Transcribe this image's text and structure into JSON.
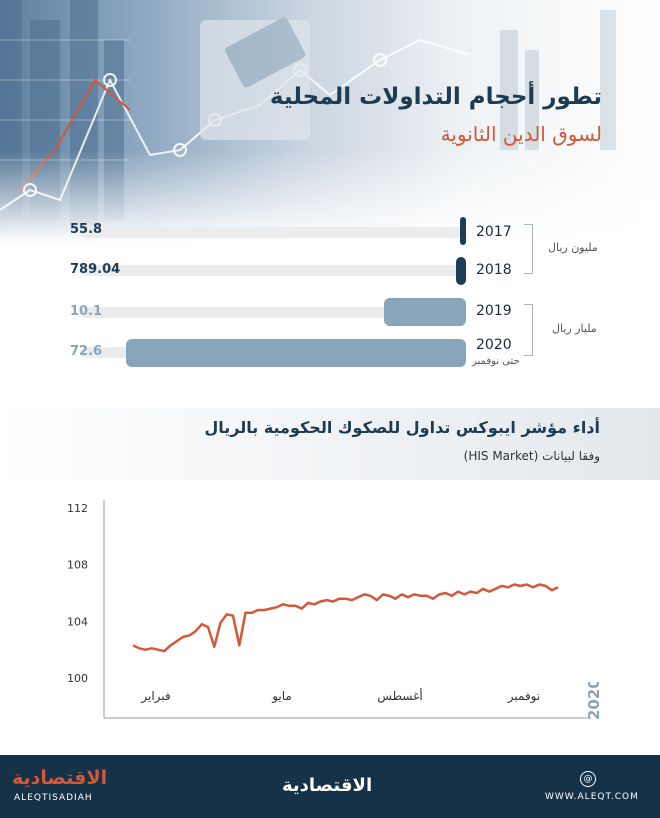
{
  "header": {
    "title": "تطور أحجام التداولات المحلية",
    "subtitle": "لسوق الدين الثانوية"
  },
  "bars_section": {
    "unit_million": "مليون ريال",
    "unit_billion": "مليار ريال",
    "rows": [
      {
        "year": "2017",
        "value": 55.8,
        "value_label": "55.8",
        "note": ""
      },
      {
        "year": "2018",
        "value": 789.04,
        "value_label": "789.04",
        "note": ""
      },
      {
        "year": "2019",
        "value": 10.1,
        "value_label": "10.1",
        "note": ""
      },
      {
        "year": "2020",
        "value": 72.6,
        "value_label": "72.6",
        "note": "حتى نوفمبر"
      }
    ]
  },
  "line_section": {
    "title": "أداء مؤشر ايبوكس تداول للصكوك الحكومية بالريال",
    "source": "وفقا لبيانات (HIS Market)",
    "year_label": "2020"
  },
  "chart_data": {
    "type": "line",
    "x_ticks": [
      "فبراير",
      "مايو",
      "أغسطس",
      "نوفمبر"
    ],
    "ylim": [
      100,
      112
    ],
    "y_ticks": [
      100,
      104,
      108,
      112
    ],
    "values": [
      102.3,
      102.1,
      102.0,
      102.1,
      102.0,
      101.9,
      102.3,
      102.6,
      102.9,
      103.0,
      103.3,
      103.8,
      103.6,
      102.2,
      103.9,
      104.5,
      104.4,
      102.3,
      104.6,
      104.6,
      104.8,
      104.8,
      104.9,
      105.0,
      105.2,
      105.1,
      105.1,
      104.9,
      105.3,
      105.2,
      105.4,
      105.5,
      105.4,
      105.6,
      105.6,
      105.5,
      105.7,
      105.9,
      105.8,
      105.5,
      105.9,
      105.8,
      105.6,
      105.9,
      105.7,
      105.9,
      105.8,
      105.8,
      105.6,
      105.9,
      106.0,
      105.8,
      106.1,
      105.9,
      106.1,
      106.0,
      106.3,
      106.1,
      106.3,
      106.5,
      106.4,
      106.6,
      106.5,
      106.6,
      106.4,
      106.6,
      106.5,
      106.2,
      106.4
    ],
    "colors": {
      "line": "#d4583a",
      "axis": "#999999"
    }
  },
  "colors": {
    "navy": "#1b3d57",
    "steel": "#8aa4ba",
    "accent": "#d2583a"
  },
  "footer": {
    "logo_ar": "الاقتصادية",
    "logo_en": "ALEQTISADIAH",
    "center_logo": "الاقتصادية",
    "url": "WWW.ALEQT.COM"
  }
}
